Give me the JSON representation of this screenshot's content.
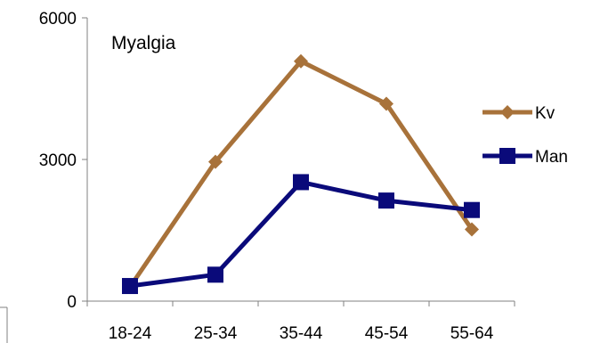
{
  "chart_data": {
    "type": "line",
    "title": "Myalgia",
    "xlabel": "",
    "ylabel": "",
    "categories": [
      "18-24",
      "25-34",
      "35-44",
      "45-54",
      "55-64"
    ],
    "yticks": [
      "0",
      "3000",
      "6000"
    ],
    "ylim": [
      0,
      6000
    ],
    "legend_position": "right",
    "grid": false,
    "series": [
      {
        "name": "Kv",
        "color": "#A8723A",
        "marker": "diamond",
        "values": [
          300,
          2950,
          5080,
          4180,
          1520
        ]
      },
      {
        "name": "Man",
        "color": "#0A0A7A",
        "marker": "square",
        "values": [
          320,
          560,
          2520,
          2130,
          1930
        ]
      }
    ]
  }
}
